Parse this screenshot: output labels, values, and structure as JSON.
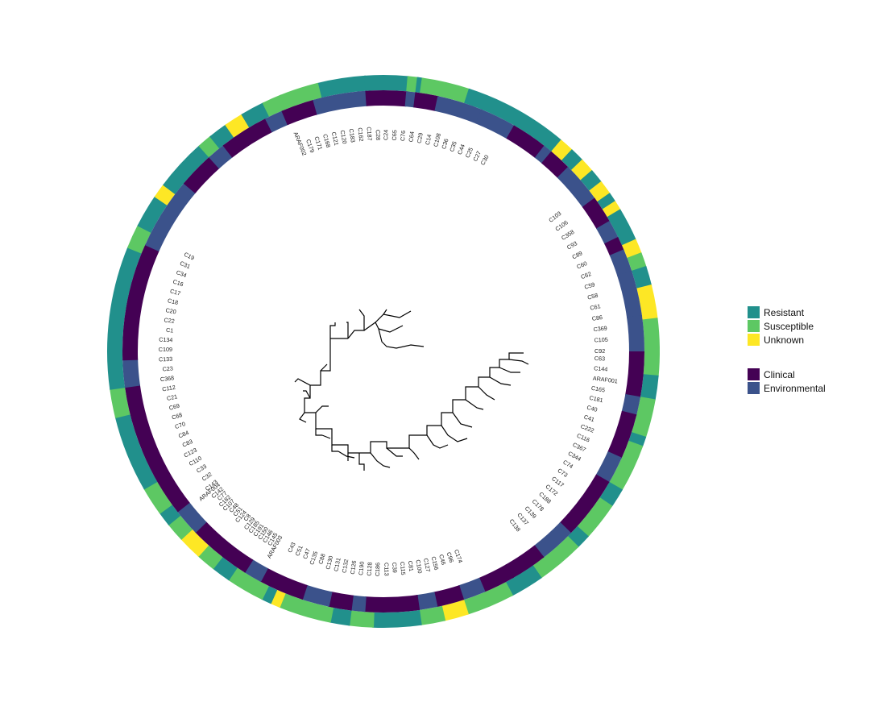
{
  "palette": {
    "resistant": "#21908C",
    "susceptible": "#5DC863",
    "unknown": "#FDE725",
    "clinical": "#440154",
    "environmental": "#3B528B",
    "branch": "#000000"
  },
  "legend": {
    "resistance": [
      {
        "key": "resistant",
        "label": "Resistant"
      },
      {
        "key": "susceptible",
        "label": "Susceptible"
      },
      {
        "key": "unknown",
        "label": "Unknown"
      }
    ],
    "source": [
      {
        "key": "clinical",
        "label": "Clinical"
      },
      {
        "key": "environmental",
        "label": "Environmental"
      }
    ]
  },
  "tree": {
    "tip_labels_right_side": [
      "C63",
      "C144",
      "ARAF001",
      "C165",
      "C181",
      "C40",
      "C41",
      "C222",
      "C116",
      "C367",
      "C344",
      "C74",
      "C73",
      "C117",
      "C172",
      "C188",
      "C178",
      "C139",
      "C137",
      "C138"
    ],
    "tip_labels_upper_right": [
      "C103",
      "C106",
      "C358",
      "C93",
      "C89",
      "C60",
      "C62",
      "C59",
      "C58",
      "C61",
      "C86",
      "C369",
      "C105",
      "C92"
    ],
    "tip_labels_left_side": [
      "C143",
      "C32",
      "C33",
      "C110",
      "C123",
      "C83",
      "C84",
      "C70",
      "C68",
      "C69",
      "C21",
      "C112",
      "C368",
      "C23",
      "C133",
      "C109",
      "C134",
      "C1",
      "C22",
      "C20",
      "C18",
      "C17",
      "C16",
      "C34",
      "C31",
      "C19"
    ],
    "tip_labels_top": [
      "ARAF002",
      "C179",
      "C171",
      "C168",
      "C121",
      "C120",
      "C183",
      "C162",
      "C187",
      "C28",
      "C24",
      "C65",
      "C76",
      "C64",
      "C29",
      "C14",
      "C108",
      "C36",
      "C35",
      "C44",
      "C25",
      "C27",
      "C30"
    ],
    "tip_labels_bottom": [
      "C174",
      "C96",
      "C46",
      "C156",
      "C127",
      "C100",
      "C81",
      "C115",
      "C39",
      "C113",
      "C186",
      "C128",
      "C190",
      "C126",
      "C132",
      "C131",
      "C130",
      "C88",
      "C135",
      "C47",
      "C51",
      "C43"
    ],
    "tip_labels_lower_left": [
      "ARAF003",
      "C145",
      "C146",
      "C150",
      "C191",
      "C185",
      "C129",
      "C8",
      "C124",
      "C51",
      "C48",
      "C107",
      "C182",
      "C77",
      "C142",
      "ARAF004"
    ]
  }
}
